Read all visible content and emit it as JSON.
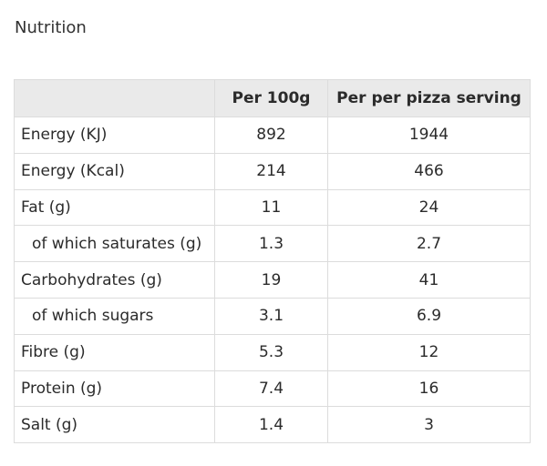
{
  "heading": "Nutrition",
  "table": {
    "headers": [
      "",
      "Per 100g",
      "Per per pizza serving"
    ],
    "rows": [
      {
        "label": "Energy (KJ)",
        "per_100g": "892",
        "per_serving": "1944",
        "indent": false
      },
      {
        "label": "Energy (Kcal)",
        "per_100g": "214",
        "per_serving": "466",
        "indent": false
      },
      {
        "label": "Fat (g)",
        "per_100g": "11",
        "per_serving": "24",
        "indent": false
      },
      {
        "label": "of which saturates (g)",
        "per_100g": "1.3",
        "per_serving": "2.7",
        "indent": true
      },
      {
        "label": "Carbohydrates (g)",
        "per_100g": "19",
        "per_serving": "41",
        "indent": false
      },
      {
        "label": "of which sugars",
        "per_100g": "3.1",
        "per_serving": "6.9",
        "indent": true
      },
      {
        "label": "Fibre (g)",
        "per_100g": "5.3",
        "per_serving": "12",
        "indent": false
      },
      {
        "label": "Protein (g)",
        "per_100g": "7.4",
        "per_serving": "16",
        "indent": false
      },
      {
        "label": "Salt (g)",
        "per_100g": "1.4",
        "per_serving": "3",
        "indent": false
      }
    ]
  },
  "colors": {
    "header_background": "#eaeaea",
    "border": "#dcdcdc",
    "text": "#2b2b2b"
  }
}
